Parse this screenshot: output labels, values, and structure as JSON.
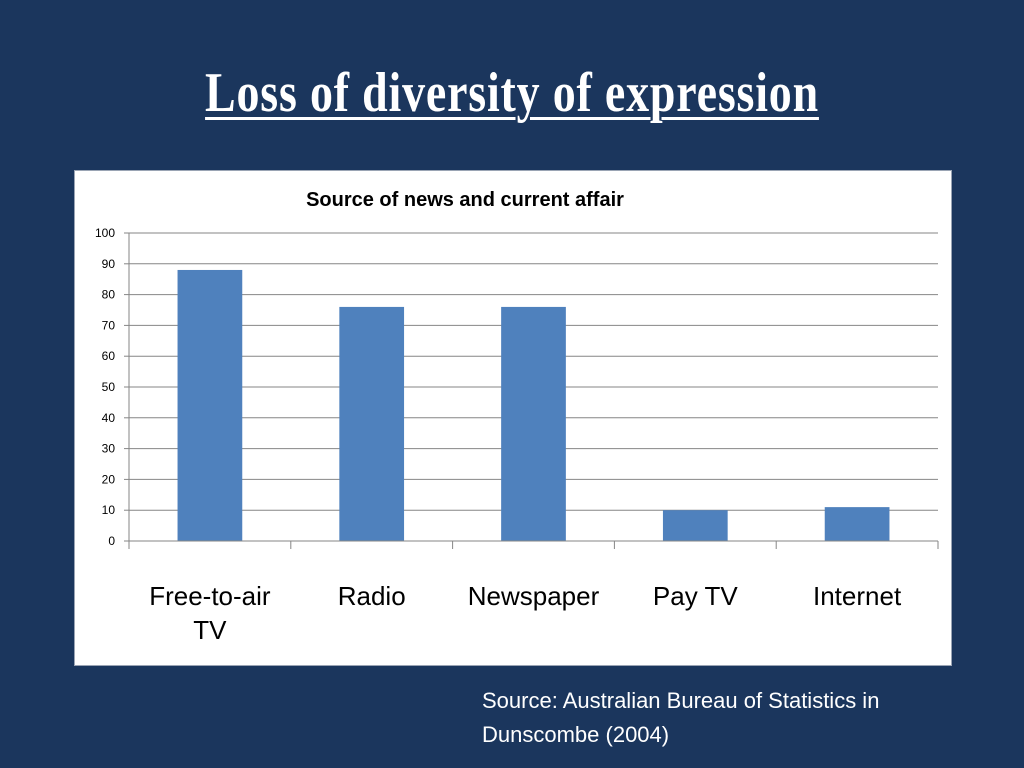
{
  "slide": {
    "title": "Loss of diversity of expression",
    "source_line1": "Source: Australian Bureau of Statistics  in",
    "source_line2": "Dunscombe (2004)"
  },
  "colors": {
    "background": "#1b365d",
    "bar": "#4f81bd",
    "gridline": "#868686",
    "text": "#ffffff"
  },
  "chart_data": {
    "type": "bar",
    "title": "Source of news and current affair",
    "categories": [
      [
        "Free-to-air",
        "TV"
      ],
      [
        "Radio"
      ],
      [
        "Newspaper"
      ],
      [
        "Pay TV"
      ],
      [
        "Internet"
      ]
    ],
    "series": [
      {
        "values": [
          88,
          76,
          76,
          10,
          11
        ]
      }
    ],
    "ylim": [
      0,
      100
    ],
    "yticks": [
      0,
      10,
      20,
      30,
      40,
      50,
      60,
      70,
      80,
      90,
      100
    ],
    "grid": true,
    "legend": "none",
    "xlabel": "",
    "ylabel": ""
  }
}
